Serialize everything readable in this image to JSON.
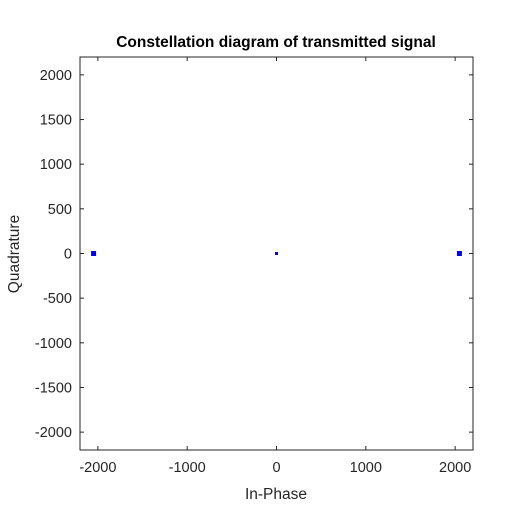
{
  "chart_data": {
    "type": "scatter",
    "title": "Constellation diagram of transmitted signal",
    "xlabel": "In-Phase",
    "ylabel": "Quadrature",
    "xlim": [
      -2200,
      2200
    ],
    "ylim": [
      -2200,
      2200
    ],
    "xticks": [
      -2000,
      -1000,
      0,
      1000,
      2000
    ],
    "yticks": [
      -2000,
      -1500,
      -1000,
      -500,
      0,
      500,
      1000,
      1500,
      2000
    ],
    "grid": false,
    "color": "#0000ff",
    "points": [
      {
        "x": -2048,
        "y": 0
      },
      {
        "x": 0,
        "y": 0
      },
      {
        "x": 2048,
        "y": 0
      }
    ]
  }
}
